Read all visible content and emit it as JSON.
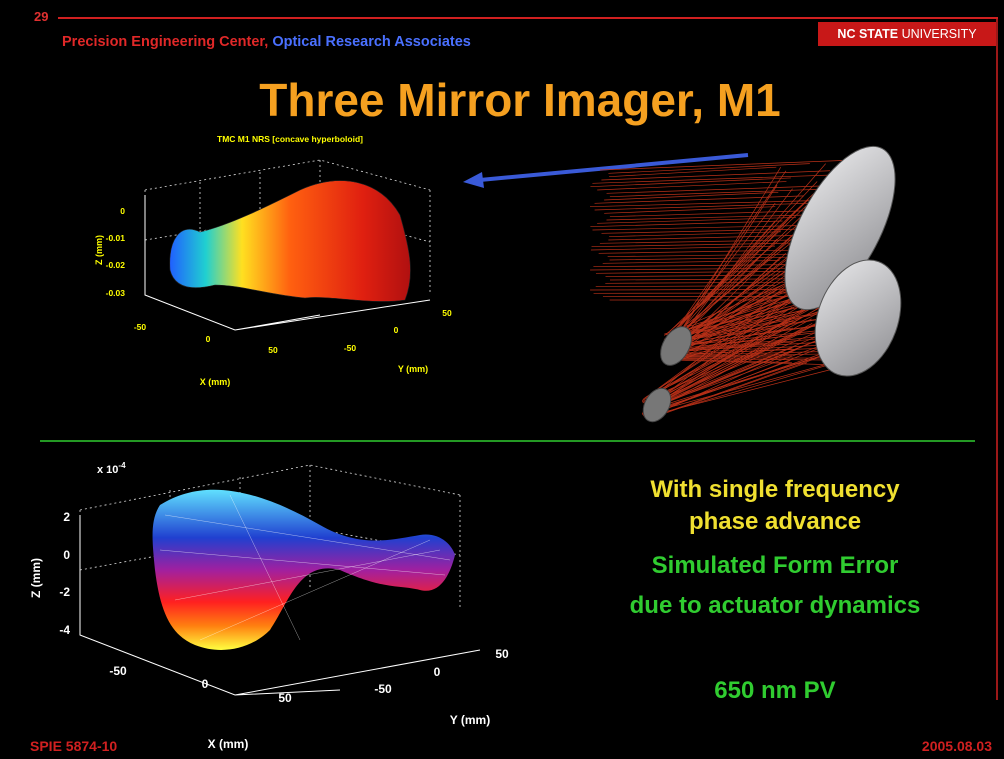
{
  "header": {
    "slide_number": "29",
    "affiliation_left": "Precision Engineering Center,",
    "affiliation_right": "Optical Research Associates",
    "university_bold": "NC STATE",
    "university_rest": "UNIVERSITY"
  },
  "title": "Three Mirror Imager, M1",
  "plot_top": {
    "title": "TMC M1 NRS [concave hyperboloid]",
    "z_label": "Z (mm)",
    "x_label": "X (mm)",
    "y_label": "Y (mm)",
    "z_ticks": [
      "0",
      "-0.01",
      "-0.02",
      "-0.03"
    ],
    "x_ticks": [
      "-50",
      "0",
      "50"
    ],
    "y_ticks": [
      "50",
      "0",
      "-50"
    ]
  },
  "plot_bottom": {
    "multiplier": "x 10",
    "exponent": "-4",
    "z_label": "Z (mm)",
    "x_label": "X (mm)",
    "y_label": "Y (mm)",
    "z_ticks": [
      "2",
      "0",
      "-2",
      "-4"
    ],
    "x_ticks": [
      "-50",
      "0",
      "50"
    ],
    "y_ticks": [
      "50",
      "0",
      "-50"
    ]
  },
  "caption": {
    "lines": [
      "With single frequency",
      "phase advance",
      "Simulated Form Error",
      "due to actuator dynamics",
      "650 nm PV"
    ]
  },
  "footer": {
    "left": "SPIE 5874-10",
    "right": "2005.08.03"
  }
}
